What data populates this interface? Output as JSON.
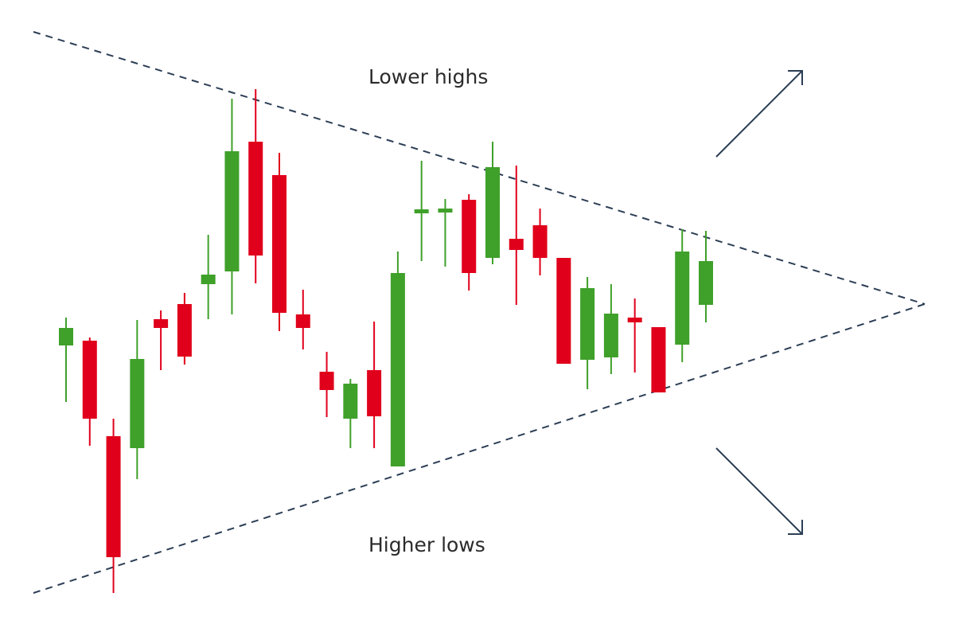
{
  "chart_data": {
    "type": "candlestick",
    "annotations": [
      "Lower highs",
      "Higher lows"
    ],
    "ylim": [
      0,
      794
    ],
    "up_color": "#3fa02a",
    "down_color": "#e0001b",
    "open": [
      360,
      366,
      246,
      231,
      393,
      412,
      437,
      453,
      616,
      574,
      399,
      327,
      268,
      329,
      208,
      526,
      527,
      543,
      470,
      494,
      511,
      470,
      342,
      345,
      395,
      383,
      361,
      411
    ],
    "high": [
      395,
      370,
      268,
      392,
      404,
      426,
      499,
      670,
      682,
      602,
      430,
      352,
      318,
      390,
      478,
      592,
      544,
      550,
      616,
      586,
      532,
      470,
      446,
      437,
      419,
      383,
      506,
      504
    ],
    "low": [
      289,
      234,
      49,
      192,
      329,
      336,
      393,
      399,
      438,
      378,
      355,
      270,
      231,
      231,
      208,
      466,
      459,
      429,
      462,
      411,
      448,
      337,
      305,
      324,
      326,
      301,
      339,
      389
    ],
    "close": [
      382,
      268,
      94,
      343,
      382,
      346,
      449,
      604,
      473,
      401,
      382,
      304,
      312,
      271,
      451,
      531,
      532,
      451,
      584,
      480,
      470,
      337,
      432,
      400,
      389,
      301,
      478,
      466
    ]
  }
}
